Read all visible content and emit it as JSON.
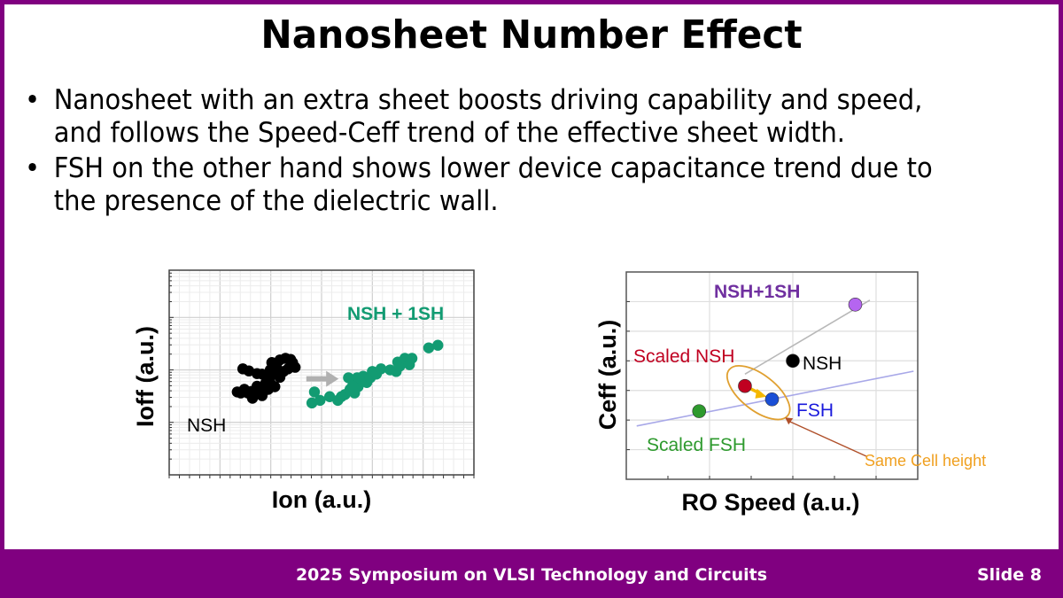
{
  "slide": {
    "title": "Nanosheet Number Effect",
    "bullets": [
      {
        "symbol": "•",
        "lines": [
          "Nanosheet with an extra sheet boosts driving capability and speed,",
          "and follows the Speed-Ceff trend of the effective sheet width."
        ]
      },
      {
        "symbol": "•",
        "lines": [
          "FSH on the other hand shows lower device capacitance trend due to",
          "the presence of the dielectric wall."
        ]
      }
    ],
    "footer": {
      "text": "2025 Symposium on VLSI Technology and Circuits",
      "slide_number": "Slide 8"
    },
    "colors": {
      "frame": "#800080",
      "nsh_black": "#000000",
      "nsh1sh_green": "#129b72",
      "purple_label": "#7030a0",
      "purple_point": "#b565f0",
      "scaled_nsh_red": "#c00020",
      "fsh_blue": "#1a4fd6",
      "scaled_fsh_green": "#2e9a2e",
      "annotation_orange": "#f0a020",
      "arrow_brown": "#b0502a"
    }
  },
  "chart_data": [
    {
      "type": "scatter",
      "title": "",
      "xlabel": "Ion (a.u.)",
      "ylabel": "Ioff (a.u.)",
      "xscale": "linear",
      "yscale": "log",
      "xlim": [
        0,
        6
      ],
      "ylim_decades": [
        0,
        3.9
      ],
      "grid": true,
      "tick_labels_shown": false,
      "annotations": [
        {
          "text": "NSH + 1SH",
          "series": "NSH + 1SH",
          "x": 3.5,
          "y": 2.85
        },
        {
          "text": "NSH",
          "series": "NSH",
          "x": 0.35,
          "y": 0.95
        },
        {
          "text": "shift-arrow",
          "from": [
            2.7,
            1.83
          ],
          "to": [
            3.3,
            1.83
          ]
        }
      ],
      "series": [
        {
          "name": "NSH",
          "color": "#000000",
          "points": [
            [
              1.45,
              2.02
            ],
            [
              1.57,
              1.98
            ],
            [
              1.73,
              1.93
            ],
            [
              1.83,
              1.92
            ],
            [
              1.95,
              1.83
            ],
            [
              1.99,
              1.75
            ],
            [
              2.08,
              1.68
            ],
            [
              1.95,
              1.63
            ],
            [
              1.85,
              1.58
            ],
            [
              1.69,
              1.56
            ],
            [
              1.55,
              1.56
            ],
            [
              1.41,
              1.56
            ],
            [
              1.34,
              1.58
            ],
            [
              1.64,
              1.46
            ],
            [
              1.83,
              1.51
            ],
            [
              1.99,
              2.0
            ],
            [
              2.02,
              2.14
            ],
            [
              2.11,
              2.09
            ],
            [
              2.18,
              2.19
            ],
            [
              2.29,
              2.22
            ],
            [
              2.39,
              2.2
            ],
            [
              2.43,
              2.14
            ],
            [
              2.48,
              2.05
            ],
            [
              2.34,
              2.02
            ],
            [
              2.25,
              1.97
            ],
            [
              2.18,
              1.86
            ],
            [
              1.9,
              1.75
            ],
            [
              1.73,
              1.69
            ],
            [
              2.08,
              1.92
            ],
            [
              1.76,
              1.66
            ],
            [
              1.62,
              1.59
            ],
            [
              1.48,
              1.63
            ]
          ]
        },
        {
          "name": "NSH + 1SH",
          "color": "#129b72",
          "points": [
            [
              2.81,
              1.37
            ],
            [
              2.86,
              1.58
            ],
            [
              2.97,
              1.42
            ],
            [
              3.16,
              1.49
            ],
            [
              3.32,
              1.42
            ],
            [
              3.46,
              1.53
            ],
            [
              3.56,
              1.63
            ],
            [
              3.65,
              1.56
            ],
            [
              3.72,
              1.68
            ],
            [
              3.79,
              1.78
            ],
            [
              3.7,
              1.85
            ],
            [
              3.82,
              1.88
            ],
            [
              3.89,
              1.76
            ],
            [
              3.96,
              1.85
            ],
            [
              4.0,
              1.97
            ],
            [
              4.08,
              1.92
            ],
            [
              4.17,
              2.02
            ],
            [
              4.35,
              2.0
            ],
            [
              4.47,
              1.97
            ],
            [
              4.5,
              2.15
            ],
            [
              4.54,
              2.07
            ],
            [
              4.64,
              2.22
            ],
            [
              4.73,
              2.1
            ],
            [
              4.78,
              2.22
            ],
            [
              5.11,
              2.42
            ],
            [
              5.29,
              2.47
            ],
            [
              3.53,
              1.85
            ],
            [
              3.39,
              1.49
            ],
            [
              3.61,
              1.69
            ]
          ]
        }
      ]
    },
    {
      "type": "scatter",
      "title": "",
      "xlabel": "RO Speed (a.u.)",
      "ylabel": "Ceff (a.u.)",
      "xlim": [
        0,
        7
      ],
      "ylim": [
        0,
        7
      ],
      "grid": true,
      "tick_labels_shown": false,
      "series": [
        {
          "name": "NSH+1SH",
          "x": 5.5,
          "y": 5.9,
          "color": "#b565f0",
          "label_color": "#7030a0"
        },
        {
          "name": "NSH",
          "x": 4.0,
          "y": 4.0,
          "color": "#000000",
          "label_color": "#000000"
        },
        {
          "name": "Scaled NSH",
          "x": 2.85,
          "y": 3.15,
          "color": "#c00020",
          "label_color": "#c00020"
        },
        {
          "name": "FSH",
          "x": 3.5,
          "y": 2.7,
          "color": "#1a4fd6",
          "label_color": "#1a1adc"
        },
        {
          "name": "Scaled FSH",
          "x": 1.75,
          "y": 2.3,
          "color": "#2e9a2e",
          "label_color": "#2e9a2e"
        }
      ],
      "trend_lines": [
        {
          "name": "NSH trend",
          "color": "#b8b8b8",
          "from": [
            2.85,
            3.55
          ],
          "to": [
            5.85,
            6.05
          ]
        },
        {
          "name": "FSH trend",
          "color": "#a8a8e8",
          "from": [
            0.25,
            1.8
          ],
          "to": [
            6.9,
            3.65
          ]
        }
      ],
      "annotations": [
        {
          "text": "Same Cell height",
          "color": "#f0a020"
        },
        {
          "type": "ellipse",
          "around": [
            "Scaled NSH",
            "FSH"
          ],
          "color": "#e0a030"
        },
        {
          "type": "arrow",
          "from": "Scaled NSH",
          "to": "FSH",
          "color": "#f5b800"
        }
      ]
    }
  ]
}
